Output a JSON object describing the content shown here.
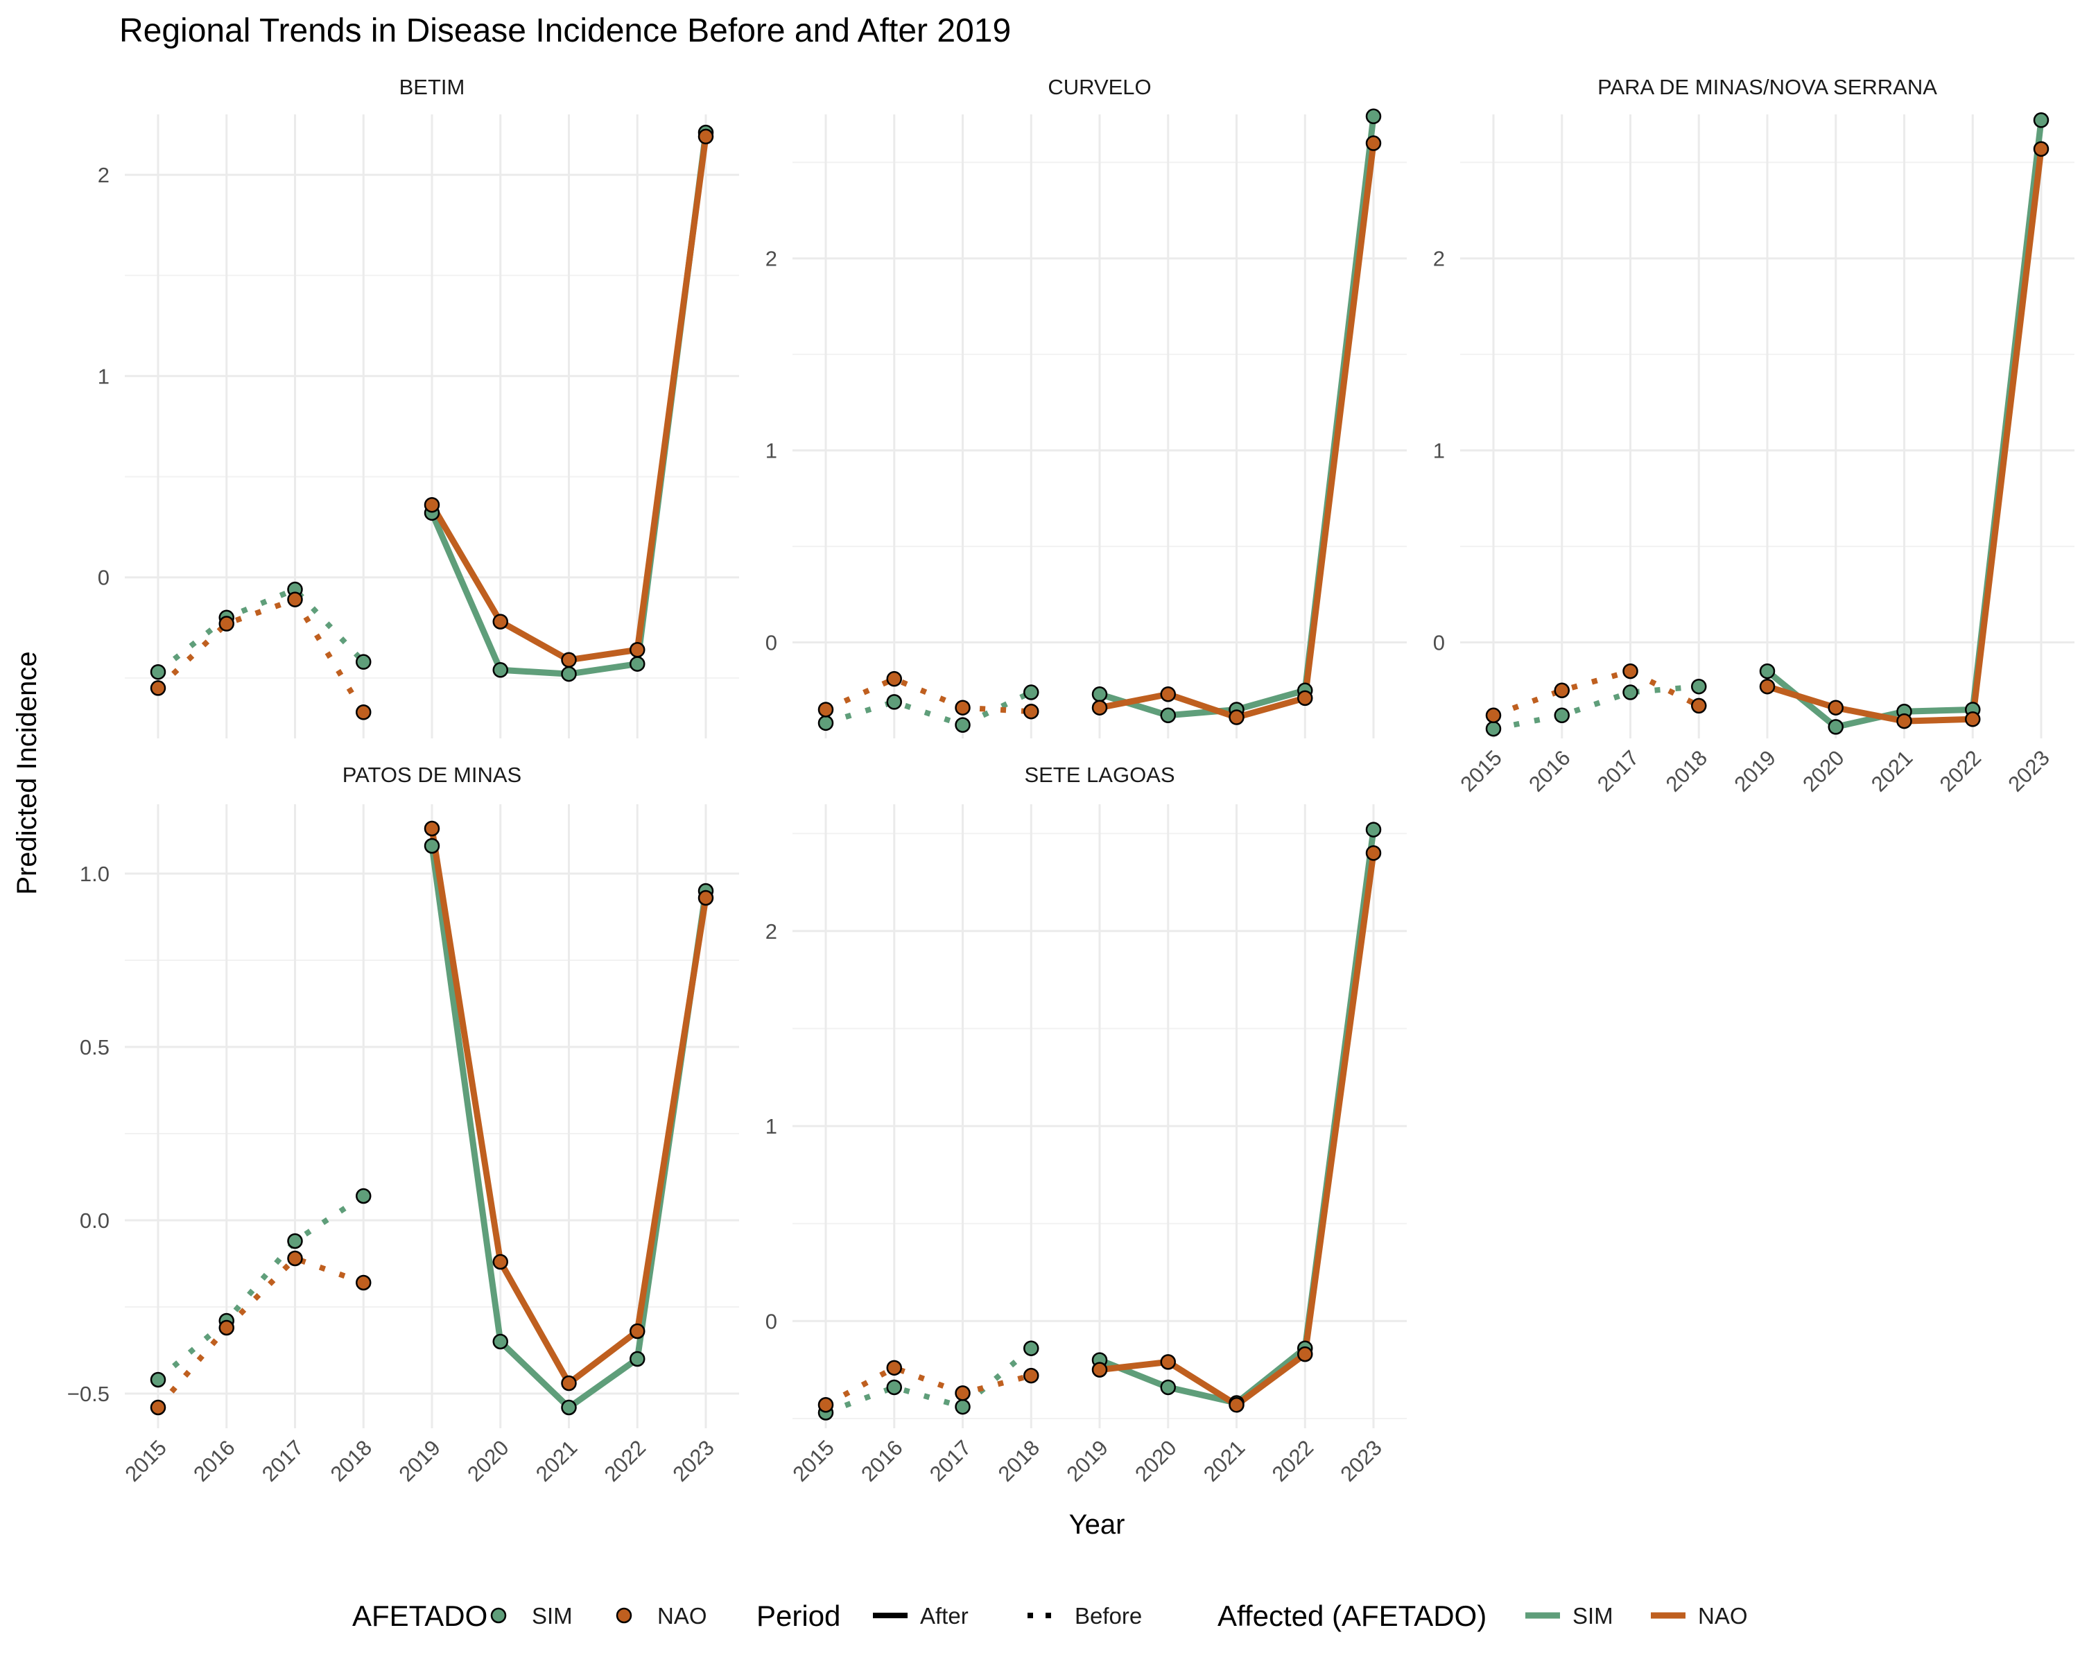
{
  "chart_data": {
    "type": "line",
    "title": "Regional Trends in Disease Incidence Before and After 2019",
    "xlabel": "Year",
    "ylabel": "Predicted Incidence",
    "x": [
      "2015",
      "2016",
      "2017",
      "2018",
      "2019",
      "2020",
      "2021",
      "2022",
      "2023"
    ],
    "series_colors": {
      "SIM": "#5f9e7a",
      "NAO": "#bf5f1f"
    },
    "legend": {
      "groups": [
        {
          "title": "AFETADO",
          "kind": "point",
          "items": [
            "SIM",
            "NAO"
          ]
        },
        {
          "title": "Period",
          "kind": "linetype",
          "items": [
            "After",
            "Before"
          ]
        },
        {
          "title": "Affected (AFETADO)",
          "kind": "line",
          "items": [
            "SIM",
            "NAO"
          ]
        }
      ]
    },
    "panels": [
      {
        "name": "BETIM",
        "ylim": [
          -0.8,
          2.3
        ],
        "major_ticks": [
          0,
          1,
          2
        ],
        "tick_labels": [
          "0",
          "1",
          "2"
        ],
        "series": [
          {
            "name": "SIM",
            "values": [
              -0.47,
              -0.2,
              -0.06,
              -0.42,
              0.32,
              -0.46,
              -0.48,
              -0.43,
              2.21
            ]
          },
          {
            "name": "NAO",
            "values": [
              -0.55,
              -0.23,
              -0.11,
              -0.67,
              0.36,
              -0.22,
              -0.41,
              -0.36,
              2.19
            ]
          }
        ]
      },
      {
        "name": "CURVELO",
        "ylim": [
          -0.5,
          2.75
        ],
        "major_ticks": [
          0,
          1,
          2
        ],
        "tick_labels": [
          "0",
          "1",
          "2"
        ],
        "series": [
          {
            "name": "SIM",
            "values": [
              -0.42,
              -0.31,
              -0.43,
              -0.26,
              -0.27,
              -0.38,
              -0.35,
              -0.25,
              2.74
            ]
          },
          {
            "name": "NAO",
            "values": [
              -0.35,
              -0.19,
              -0.34,
              -0.36,
              -0.34,
              -0.27,
              -0.39,
              -0.29,
              2.6
            ]
          }
        ]
      },
      {
        "name": "PARA DE MINAS/NOVA SERRANA",
        "ylim": [
          -0.5,
          2.75
        ],
        "major_ticks": [
          0,
          1,
          2
        ],
        "tick_labels": [
          "0",
          "1",
          "2"
        ],
        "series": [
          {
            "name": "SIM",
            "values": [
              -0.45,
              -0.38,
              -0.26,
              -0.23,
              -0.15,
              -0.44,
              -0.36,
              -0.35,
              2.72
            ]
          },
          {
            "name": "NAO",
            "values": [
              -0.38,
              -0.25,
              -0.15,
              -0.33,
              -0.23,
              -0.34,
              -0.41,
              -0.4,
              2.57
            ]
          }
        ]
      },
      {
        "name": "PATOS DE MINAS",
        "ylim": [
          -0.6,
          1.2
        ],
        "major_ticks": [
          -0.5,
          0,
          0.5,
          1
        ],
        "tick_labels": [
          "−0.5",
          "0.0",
          "0.5",
          "1.0"
        ],
        "series": [
          {
            "name": "SIM",
            "values": [
              -0.46,
              -0.29,
              -0.06,
              0.07,
              1.08,
              -0.35,
              -0.54,
              -0.4,
              0.95
            ]
          },
          {
            "name": "NAO",
            "values": [
              -0.54,
              -0.31,
              -0.11,
              -0.18,
              1.13,
              -0.12,
              -0.47,
              -0.32,
              0.93
            ]
          }
        ]
      },
      {
        "name": "SETE LAGOAS",
        "ylim": [
          -0.55,
          2.65
        ],
        "major_ticks": [
          0,
          1,
          2
        ],
        "tick_labels": [
          "0",
          "1",
          "2"
        ],
        "series": [
          {
            "name": "SIM",
            "values": [
              -0.47,
              -0.34,
              -0.44,
              -0.14,
              -0.2,
              -0.34,
              -0.42,
              -0.14,
              2.52
            ]
          },
          {
            "name": "NAO",
            "values": [
              -0.43,
              -0.24,
              -0.37,
              -0.28,
              -0.25,
              -0.21,
              -0.43,
              -0.17,
              2.4
            ]
          }
        ]
      }
    ]
  }
}
